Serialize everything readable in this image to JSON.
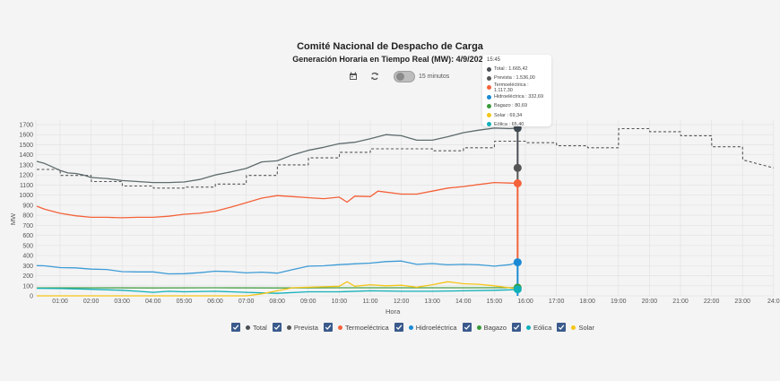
{
  "header": {
    "title": "Comité Nacional de Despacho de Carga",
    "subtitle": "Generación Horaria en Tiempo Real (MW): 4/9/2025",
    "toggle_label": "15 minutos",
    "toggle_on": false
  },
  "icons": {
    "calendar": "calendar-icon",
    "refresh": "refresh-icon"
  },
  "tooltip": {
    "time": "15:45",
    "rows": [
      {
        "label": "Total : 1.665,42",
        "color": "#4a4f55"
      },
      {
        "label": "Prevista : 1.536,00",
        "color": "#555555"
      },
      {
        "label": "Termoeléctrica : 1.117,30",
        "color": "#f4623a"
      },
      {
        "label": "Hidroeléctrica : 332,69",
        "color": "#1a8ad4"
      },
      {
        "label": "Bagazo : 80,69",
        "color": "#3a9a3a"
      },
      {
        "label": "Solar : 69,34",
        "color": "#f5c518"
      },
      {
        "label": "Eólica : 65,40",
        "color": "#10b0b8"
      }
    ]
  },
  "legend": [
    {
      "label": "Total",
      "color": "#4a4f55",
      "checked": true
    },
    {
      "label": "Prevista",
      "color": "#555555",
      "checked": true
    },
    {
      "label": "Termoeléctrica",
      "color": "#f4623a",
      "checked": true
    },
    {
      "label": "Hidroeléctrica",
      "color": "#1a8ad4",
      "checked": true
    },
    {
      "label": "Bagazo",
      "color": "#3a9a3a",
      "checked": true
    },
    {
      "label": "Eólica",
      "color": "#10b0b8",
      "checked": true
    },
    {
      "label": "Solar",
      "color": "#f5c518",
      "checked": true
    }
  ],
  "chart_data": {
    "type": "line",
    "title": "Comité Nacional de Despacho de Carga",
    "subtitle": "Generación Horaria en Tiempo Real (MW): 4/9/2025",
    "xlabel": "Hora",
    "ylabel": "MW",
    "ylim": [
      0,
      1700
    ],
    "xlim_hours": [
      0.25,
      24
    ],
    "yticks": [
      0,
      100,
      200,
      300,
      400,
      500,
      600,
      700,
      800,
      900,
      1000,
      1100,
      1200,
      1300,
      1400,
      1500,
      1600,
      1700
    ],
    "xticks": [
      "01:00",
      "02:00",
      "03:00",
      "04:00",
      "05:00",
      "06:00",
      "07:00",
      "08:00",
      "09:00",
      "10:00",
      "11:00",
      "12:00",
      "13:00",
      "14:00",
      "15:00",
      "16:00",
      "17:00",
      "18:00",
      "19:00",
      "20:00",
      "21:00",
      "22:00",
      "23:00",
      "24:0"
    ],
    "grid": true,
    "legend_position": "bottom",
    "hover_time_hours": 15.75,
    "series": [
      {
        "name": "Total",
        "color": "#5f6b6d",
        "dashed": false,
        "x": [
          0.25,
          0.5,
          0.75,
          1,
          1.25,
          1.5,
          1.75,
          2,
          2.5,
          3,
          3.5,
          4,
          4.5,
          5,
          5.5,
          6,
          6.5,
          7,
          7.5,
          8,
          8.5,
          9,
          9.5,
          10,
          10.5,
          11,
          11.5,
          12,
          12.5,
          13,
          13.5,
          14,
          14.5,
          15,
          15.5,
          15.75
        ],
        "values": [
          1335,
          1315,
          1280,
          1245,
          1220,
          1215,
          1200,
          1175,
          1165,
          1145,
          1135,
          1125,
          1125,
          1130,
          1155,
          1200,
          1230,
          1265,
          1330,
          1340,
          1400,
          1445,
          1475,
          1510,
          1525,
          1560,
          1600,
          1590,
          1545,
          1545,
          1580,
          1620,
          1645,
          1665,
          1660,
          1665
        ]
      },
      {
        "name": "Prevista",
        "color": "#555555",
        "dashed": true,
        "x": [
          0.25,
          1,
          1.01,
          2,
          2.01,
          3,
          3.01,
          4,
          4.01,
          5,
          5.01,
          6,
          6.01,
          7,
          7.01,
          8,
          8.01,
          9,
          9.01,
          10,
          10.01,
          11,
          11.01,
          12,
          12.01,
          13,
          13.01,
          14,
          14.01,
          15,
          15.01,
          16,
          16.01,
          17,
          17.01,
          18,
          18.01,
          19,
          19.01,
          20,
          20.01,
          21,
          21.01,
          22,
          22.01,
          23,
          23.01,
          24
        ],
        "values": [
          1255,
          1255,
          1195,
          1195,
          1135,
          1135,
          1090,
          1090,
          1070,
          1070,
          1080,
          1080,
          1110,
          1110,
          1195,
          1195,
          1300,
          1300,
          1370,
          1370,
          1425,
          1425,
          1460,
          1460,
          1460,
          1460,
          1440,
          1440,
          1470,
          1470,
          1535,
          1535,
          1520,
          1520,
          1490,
          1490,
          1470,
          1470,
          1660,
          1660,
          1630,
          1630,
          1590,
          1590,
          1480,
          1480,
          1350,
          1270
        ]
      },
      {
        "name": "Termoeléctrica",
        "color": "#f4623a",
        "dashed": false,
        "x": [
          0.25,
          0.5,
          1,
          1.5,
          2,
          2.5,
          3,
          3.5,
          4,
          4.5,
          5,
          5.5,
          6,
          6.5,
          7,
          7.5,
          8,
          8.5,
          9,
          9.5,
          10,
          10.25,
          10.5,
          11,
          11.25,
          11.5,
          12,
          12.5,
          13,
          13.5,
          14,
          14.5,
          15,
          15.5,
          15.75
        ],
        "values": [
          890,
          860,
          820,
          795,
          780,
          780,
          775,
          780,
          780,
          790,
          810,
          820,
          840,
          880,
          925,
          970,
          995,
          985,
          975,
          965,
          980,
          930,
          990,
          985,
          1040,
          1030,
          1010,
          1010,
          1040,
          1070,
          1085,
          1105,
          1125,
          1120,
          1117
        ]
      },
      {
        "name": "Hidroeléctrica",
        "color": "#3d9bd6",
        "dashed": false,
        "x": [
          0.25,
          0.5,
          1,
          1.5,
          2,
          2.5,
          3,
          3.5,
          4,
          4.5,
          5,
          5.5,
          6,
          6.5,
          7,
          7.5,
          8,
          8.5,
          9,
          9.5,
          10,
          10.5,
          11,
          11.5,
          12,
          12.5,
          13,
          13.5,
          14,
          14.5,
          15,
          15.5,
          15.75
        ],
        "values": [
          300,
          298,
          280,
          278,
          265,
          262,
          240,
          238,
          238,
          218,
          220,
          230,
          245,
          240,
          228,
          235,
          225,
          260,
          295,
          298,
          310,
          318,
          325,
          340,
          345,
          312,
          320,
          308,
          312,
          308,
          295,
          310,
          333
        ]
      },
      {
        "name": "Bagazo",
        "color": "#4aa04a",
        "dashed": false,
        "x": [
          0.25,
          2,
          4,
          6,
          8,
          10,
          12,
          14,
          15.75
        ],
        "values": [
          78,
          80,
          78,
          80,
          78,
          80,
          80,
          80,
          81
        ]
      },
      {
        "name": "Eólica",
        "color": "#10b0b8",
        "dashed": false,
        "x": [
          0.25,
          1,
          2,
          3,
          3.5,
          4,
          4.5,
          5,
          6,
          7,
          8,
          9,
          10,
          11,
          12,
          13,
          14,
          15,
          15.5,
          15.75
        ],
        "values": [
          75,
          72,
          65,
          55,
          45,
          35,
          45,
          40,
          45,
          35,
          25,
          40,
          40,
          50,
          45,
          45,
          50,
          55,
          60,
          65
        ]
      },
      {
        "name": "Solar",
        "color": "#f5c518",
        "dashed": false,
        "x": [
          0.25,
          7,
          7.5,
          8,
          8.5,
          9,
          9.5,
          10,
          10.25,
          10.5,
          11,
          11.5,
          12,
          12.5,
          13,
          13.5,
          14,
          14.5,
          15,
          15.5,
          15.75
        ],
        "values": [
          0,
          0,
          20,
          50,
          80,
          85,
          90,
          95,
          140,
          95,
          110,
          100,
          105,
          85,
          110,
          140,
          120,
          115,
          100,
          80,
          69
        ]
      }
    ]
  }
}
